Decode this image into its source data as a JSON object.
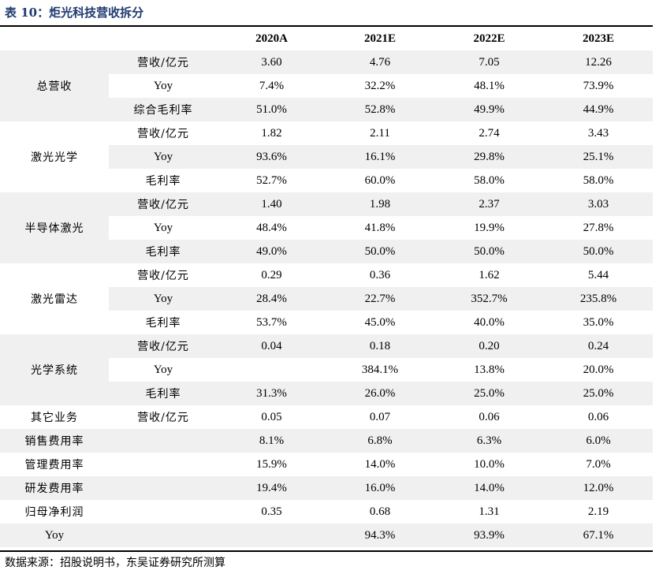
{
  "title": "表 10：炬光科技营收拆分",
  "columns": [
    "2020A",
    "2021E",
    "2022E",
    "2023E"
  ],
  "groups": [
    {
      "category": "总营收",
      "shaded": true,
      "rows": [
        {
          "metric": "营收/亿元",
          "values": [
            "3.60",
            "4.76",
            "7.05",
            "12.26"
          ]
        },
        {
          "metric": "Yoy",
          "values": [
            "7.4%",
            "32.2%",
            "48.1%",
            "73.9%"
          ]
        },
        {
          "metric": "综合毛利率",
          "values": [
            "51.0%",
            "52.8%",
            "49.9%",
            "44.9%"
          ]
        }
      ]
    },
    {
      "category": "激光光学",
      "shaded": false,
      "rows": [
        {
          "metric": "营收/亿元",
          "values": [
            "1.82",
            "2.11",
            "2.74",
            "3.43"
          ]
        },
        {
          "metric": "Yoy",
          "values": [
            "93.6%",
            "16.1%",
            "29.8%",
            "25.1%"
          ]
        },
        {
          "metric": "毛利率",
          "values": [
            "52.7%",
            "60.0%",
            "58.0%",
            "58.0%"
          ]
        }
      ]
    },
    {
      "category": "半导体激光",
      "shaded": true,
      "rows": [
        {
          "metric": "营收/亿元",
          "values": [
            "1.40",
            "1.98",
            "2.37",
            "3.03"
          ]
        },
        {
          "metric": "Yoy",
          "values": [
            "48.4%",
            "41.8%",
            "19.9%",
            "27.8%"
          ]
        },
        {
          "metric": "毛利率",
          "values": [
            "49.0%",
            "50.0%",
            "50.0%",
            "50.0%"
          ]
        }
      ]
    },
    {
      "category": "激光雷达",
      "shaded": false,
      "rows": [
        {
          "metric": "营收/亿元",
          "values": [
            "0.29",
            "0.36",
            "1.62",
            "5.44"
          ]
        },
        {
          "metric": "Yoy",
          "values": [
            "28.4%",
            "22.7%",
            "352.7%",
            "235.8%"
          ]
        },
        {
          "metric": "毛利率",
          "values": [
            "53.7%",
            "45.0%",
            "40.0%",
            "35.0%"
          ]
        }
      ]
    },
    {
      "category": "光学系统",
      "shaded": true,
      "rows": [
        {
          "metric": "营收/亿元",
          "values": [
            "0.04",
            "0.18",
            "0.20",
            "0.24"
          ]
        },
        {
          "metric": "Yoy",
          "values": [
            "",
            "384.1%",
            "13.8%",
            "20.0%"
          ]
        },
        {
          "metric": "毛利率",
          "values": [
            "31.3%",
            "26.0%",
            "25.0%",
            "25.0%"
          ]
        }
      ]
    }
  ],
  "singles": [
    {
      "category": "其它业务",
      "metric": "营收/亿元",
      "values": [
        "0.05",
        "0.07",
        "0.06",
        "0.06"
      ]
    },
    {
      "category": "销售费用率",
      "metric": "",
      "values": [
        "8.1%",
        "6.8%",
        "6.3%",
        "6.0%"
      ]
    },
    {
      "category": "管理费用率",
      "metric": "",
      "values": [
        "15.9%",
        "14.0%",
        "10.0%",
        "7.0%"
      ]
    },
    {
      "category": "研发费用率",
      "metric": "",
      "values": [
        "19.4%",
        "16.0%",
        "14.0%",
        "12.0%"
      ]
    },
    {
      "category": "归母净利润",
      "metric": "",
      "values": [
        "0.35",
        "0.68",
        "1.31",
        "2.19"
      ]
    },
    {
      "category": "Yoy",
      "metric": "",
      "values": [
        "",
        "94.3%",
        "93.9%",
        "67.1%"
      ]
    }
  ],
  "source_note": "数据来源：招股说明书，东吴证券研究所测算"
}
